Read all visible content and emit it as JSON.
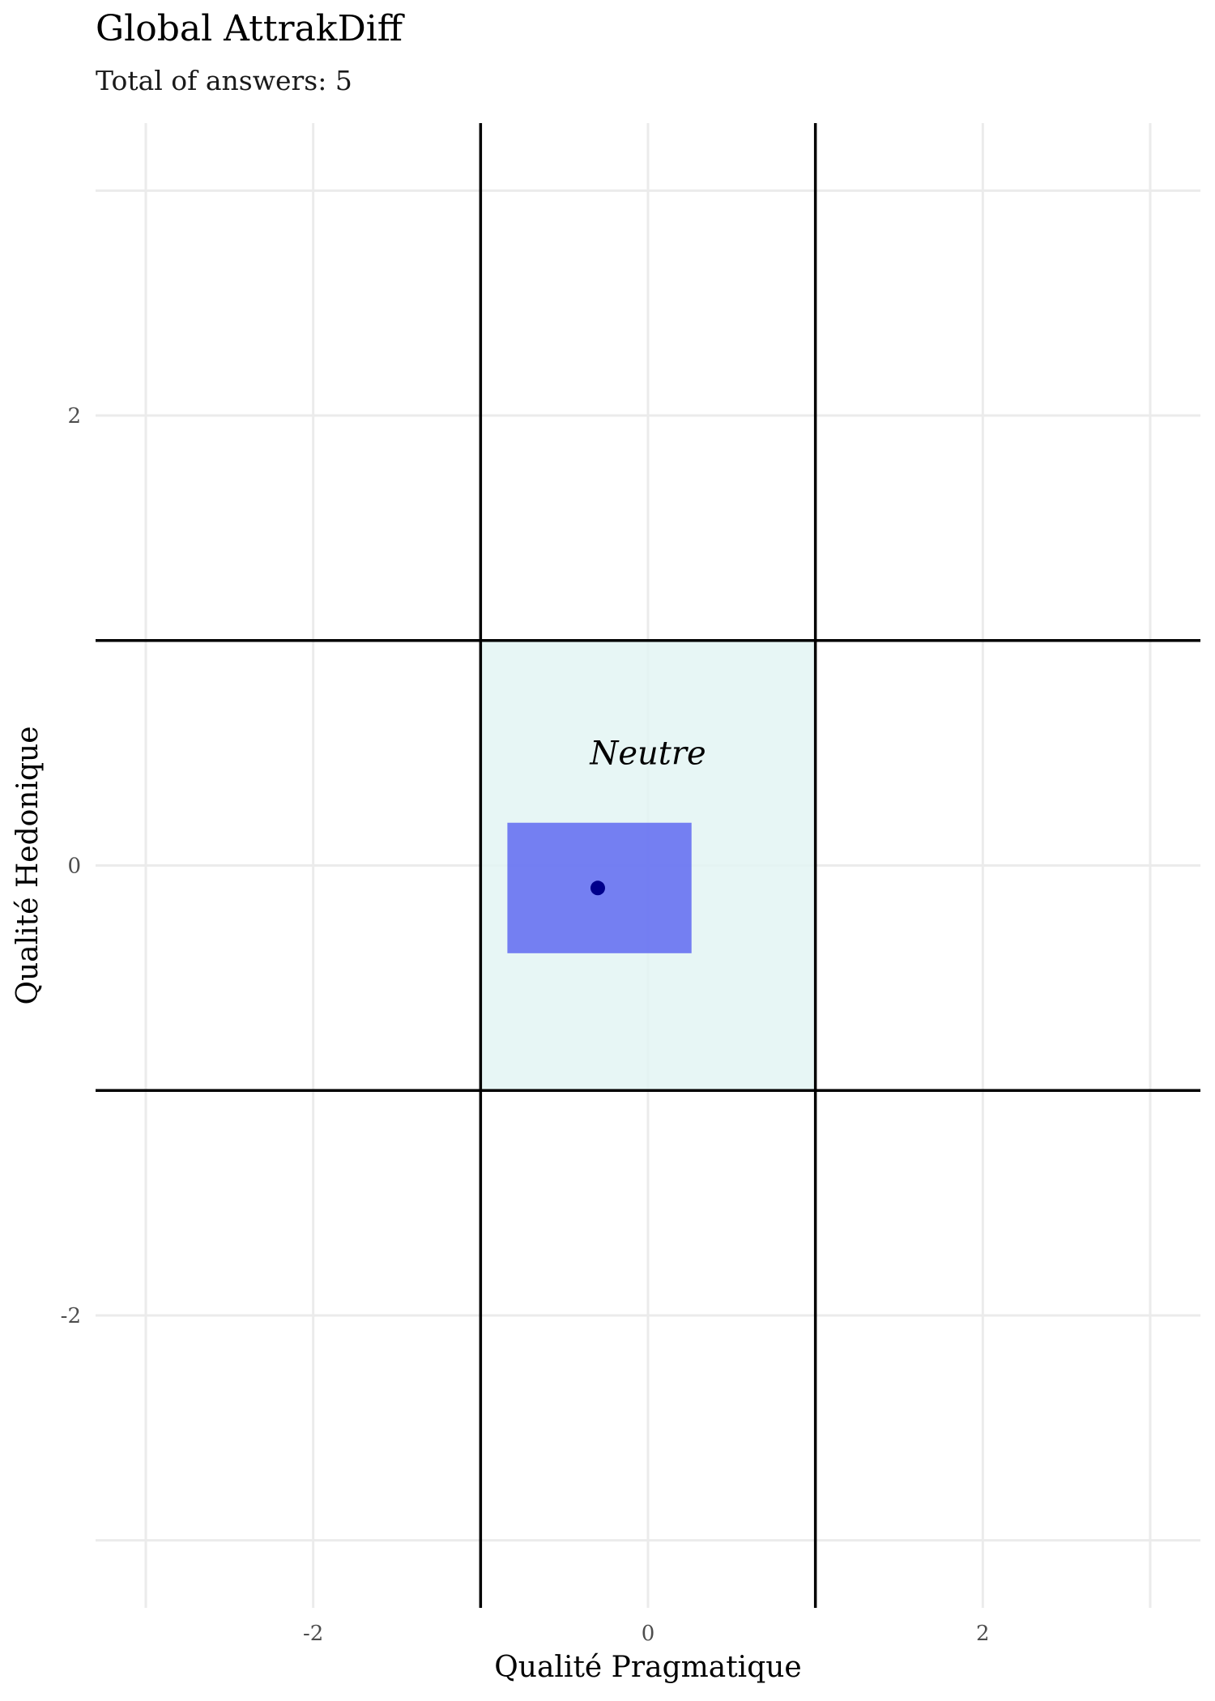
{
  "chart_data": {
    "type": "scatter",
    "title": "Global AttrakDiff",
    "subtitle": "Total of answers: 5",
    "xlabel": "Qualité Pragmatique",
    "ylabel": "Qualité Hedonique",
    "xlim": [
      -3.3,
      3.3
    ],
    "ylim": [
      -3.3,
      3.3
    ],
    "x_ticks": [
      -2,
      0,
      2
    ],
    "y_ticks": [
      -2,
      0,
      2
    ],
    "x_tick_labels": [
      "-2",
      "0",
      "2"
    ],
    "y_tick_labels": [
      "-2",
      "0",
      "2"
    ],
    "minor_grid": [
      -3,
      -1,
      1,
      3
    ],
    "quadrant_lines": [
      -1,
      1
    ],
    "grid": true,
    "legend": "none",
    "zones": [
      {
        "label": "Neutre",
        "x": [
          -1,
          1
        ],
        "y": [
          -1,
          1
        ],
        "label_pos": [
          0,
          0.5
        ],
        "color": "#e3f4f3"
      }
    ],
    "points": [
      {
        "x": -0.3,
        "y": -0.1,
        "color": "#00008b"
      }
    ],
    "confidence_rect": {
      "x": [
        -0.84,
        0.26
      ],
      "y": [
        -0.39,
        0.19
      ],
      "color": "#5a64f2",
      "opacity": 0.82
    }
  }
}
